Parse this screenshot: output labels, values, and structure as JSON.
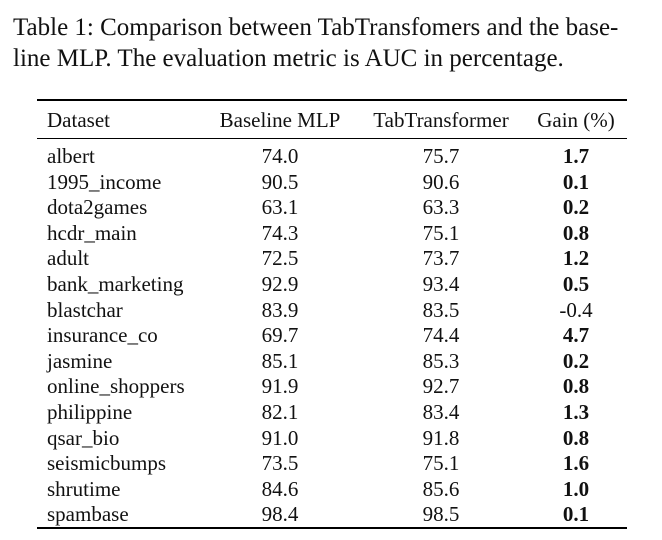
{
  "caption": {
    "line1": "Table 1: Comparison between TabTransfomers and the base-",
    "line2": "line MLP. The evaluation metric is AUC in percentage."
  },
  "table": {
    "headers": [
      "Dataset",
      "Baseline MLP",
      "TabTransformer",
      "Gain (%)"
    ],
    "rows": [
      {
        "dataset": "albert",
        "mlp": "74.0",
        "tab": "75.7",
        "gain": "1.7",
        "gain_bold": true
      },
      {
        "dataset": "1995_income",
        "mlp": "90.5",
        "tab": "90.6",
        "gain": "0.1",
        "gain_bold": true
      },
      {
        "dataset": "dota2games",
        "mlp": "63.1",
        "tab": "63.3",
        "gain": "0.2",
        "gain_bold": true
      },
      {
        "dataset": "hcdr_main",
        "mlp": "74.3",
        "tab": "75.1",
        "gain": "0.8",
        "gain_bold": true
      },
      {
        "dataset": "adult",
        "mlp": "72.5",
        "tab": "73.7",
        "gain": "1.2",
        "gain_bold": true
      },
      {
        "dataset": "bank_marketing",
        "mlp": "92.9",
        "tab": "93.4",
        "gain": "0.5",
        "gain_bold": true
      },
      {
        "dataset": "blastchar",
        "mlp": "83.9",
        "tab": "83.5",
        "gain": "-0.4",
        "gain_bold": false
      },
      {
        "dataset": "insurance_co",
        "mlp": "69.7",
        "tab": "74.4",
        "gain": "4.7",
        "gain_bold": true
      },
      {
        "dataset": "jasmine",
        "mlp": "85.1",
        "tab": "85.3",
        "gain": "0.2",
        "gain_bold": true
      },
      {
        "dataset": "online_shoppers",
        "mlp": "91.9",
        "tab": "92.7",
        "gain": "0.8",
        "gain_bold": true
      },
      {
        "dataset": "philippine",
        "mlp": "82.1",
        "tab": "83.4",
        "gain": "1.3",
        "gain_bold": true
      },
      {
        "dataset": "qsar_bio",
        "mlp": "91.0",
        "tab": "91.8",
        "gain": "0.8",
        "gain_bold": true
      },
      {
        "dataset": "seismicbumps",
        "mlp": "73.5",
        "tab": "75.1",
        "gain": "1.6",
        "gain_bold": true
      },
      {
        "dataset": "shrutime",
        "mlp": "84.6",
        "tab": "85.6",
        "gain": "1.0",
        "gain_bold": true
      },
      {
        "dataset": "spambase",
        "mlp": "98.4",
        "tab": "98.5",
        "gain": "0.1",
        "gain_bold": true
      }
    ]
  }
}
